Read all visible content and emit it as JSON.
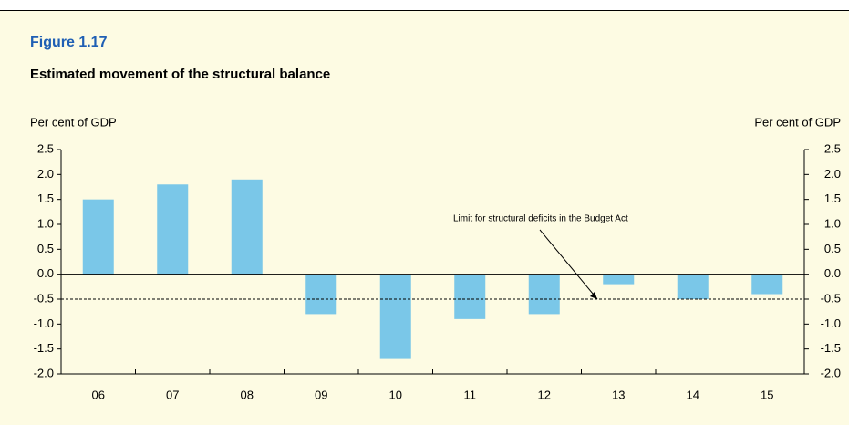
{
  "chart_data": {
    "type": "bar",
    "figure_label": "Figure 1.17",
    "title": "Estimated movement of the structural balance",
    "ylabel": "Per cent of GDP",
    "y2label": "Per cent of GDP",
    "categories": [
      "06",
      "07",
      "08",
      "09",
      "10",
      "11",
      "12",
      "13",
      "14",
      "15"
    ],
    "values": [
      1.5,
      1.8,
      1.9,
      -0.8,
      -1.7,
      -0.9,
      -0.8,
      -0.2,
      -0.5,
      -0.4
    ],
    "color": "#7ac7e8",
    "ylim": [
      -2.0,
      2.5
    ],
    "yticks": [
      {
        "value": 2.5,
        "label": "2.5"
      },
      {
        "value": 2.0,
        "label": "2.0"
      },
      {
        "value": 1.5,
        "label": "1.5"
      },
      {
        "value": 1.0,
        "label": "1.0"
      },
      {
        "value": 0.5,
        "label": "0.5"
      },
      {
        "value": 0.0,
        "label": "0.0"
      },
      {
        "value": -0.5,
        "label": "-0.5"
      },
      {
        "value": -1.0,
        "label": "-1.0"
      },
      {
        "value": -1.5,
        "label": "-1.5"
      },
      {
        "value": -2.0,
        "label": "-2.0"
      }
    ],
    "y2lim": [
      -2.0,
      2.5
    ],
    "y2ticks": [
      {
        "value": 2.5,
        "label": "2.5"
      },
      {
        "value": 2.0,
        "label": "2.0"
      },
      {
        "value": 1.5,
        "label": "1.5"
      },
      {
        "value": 1.0,
        "label": "1.0"
      },
      {
        "value": 0.5,
        "label": "0.5"
      },
      {
        "value": 0.0,
        "label": "0.0"
      },
      {
        "value": -0.5,
        "label": "-0.5"
      },
      {
        "value": -1.0,
        "label": "-1.0"
      },
      {
        "value": -1.5,
        "label": "-1.5"
      },
      {
        "value": -2.0,
        "label": "-2.0"
      }
    ],
    "reference_line": {
      "value": -0.5,
      "label": "Limit for structural deficits in the Budget Act"
    },
    "grid": false
  }
}
